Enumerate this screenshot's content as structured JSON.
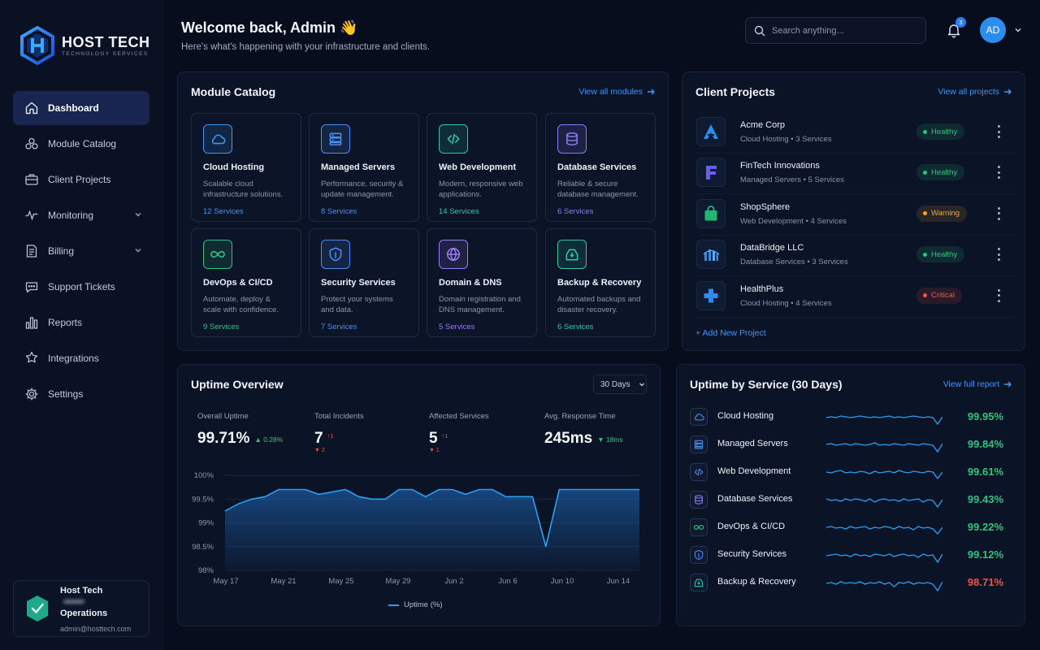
{
  "brand": {
    "name": "HOST TECH",
    "tagline": "TECHNOLOGY SERVICES"
  },
  "sidebar": {
    "items": [
      {
        "label": "Dashboard",
        "icon": "home-icon",
        "active": true
      },
      {
        "label": "Module Catalog",
        "icon": "cubes-icon"
      },
      {
        "label": "Client Projects",
        "icon": "briefcase-icon"
      },
      {
        "label": "Monitoring",
        "icon": "pulse-icon",
        "expandable": true
      },
      {
        "label": "Billing",
        "icon": "invoice-icon",
        "expandable": true
      },
      {
        "label": "Support Tickets",
        "icon": "chat-icon"
      },
      {
        "label": "Reports",
        "icon": "bar-chart-icon"
      },
      {
        "label": "Integrations",
        "icon": "puzzle-icon"
      },
      {
        "label": "Settings",
        "icon": "gear-icon"
      }
    ],
    "profile": {
      "name": "Host Tech Operations",
      "name_line1": "Host Tech",
      "name_line2": "Operations",
      "email": "admin@hosttech.com"
    }
  },
  "header": {
    "title": "Welcome back, Admin 👋",
    "subtitle": "Here's what's happening with your infrastructure and clients.",
    "search_placeholder": "Search anything...",
    "notifications_count": "3",
    "avatar_initials": "AD"
  },
  "module_catalog": {
    "title": "Module Catalog",
    "view_all": "View all modules",
    "modules": [
      {
        "title": "Cloud Hosting",
        "desc": "Scalable cloud infrastructure solutions.",
        "count": "12 Services",
        "icon": "cloud-icon",
        "color": "#3d97f6"
      },
      {
        "title": "Managed Servers",
        "desc": "Performance, security & update management.",
        "count": "8 Services",
        "icon": "server-icon",
        "color": "#4a8df6"
      },
      {
        "title": "Web Development",
        "desc": "Modern, responsive web applications.",
        "count": "14 Services",
        "icon": "code-icon",
        "color": "#2ec9a4"
      },
      {
        "title": "Database Services",
        "desc": "Reliable & secure database management.",
        "count": "6 Services",
        "icon": "database-icon",
        "color": "#8b7cf6"
      },
      {
        "title": "DevOps & CI/CD",
        "desc": "Automate, deploy & scale with confidence.",
        "count": "9 Services",
        "icon": "infinity-icon",
        "color": "#2fc47e"
      },
      {
        "title": "Security Services",
        "desc": "Protect your systems and data.",
        "count": "7 Services",
        "icon": "shield-icon",
        "color": "#4a8df6"
      },
      {
        "title": "Domain & DNS",
        "desc": "Domain registration and DNS management.",
        "count": "5 Services",
        "icon": "globe-icon",
        "color": "#9a7cf6"
      },
      {
        "title": "Backup & Recovery",
        "desc": "Automated backups and disaster recovery.",
        "count": "6 Services",
        "icon": "backup-icon",
        "color": "#2ec9a4"
      }
    ]
  },
  "client_projects": {
    "title": "Client Projects",
    "view_all": "View all projects",
    "add": "+ Add New Project",
    "projects": [
      {
        "name": "Acme Corp",
        "meta": "Cloud Hosting • 3 Services",
        "status": "Healthy",
        "status_color": "#2fc47e",
        "logo": "acme-logo-icon"
      },
      {
        "name": "FinTech Innovations",
        "meta": "Managed Servers • 5 Services",
        "status": "Healthy",
        "status_color": "#2fc47e",
        "logo": "fintech-logo-icon"
      },
      {
        "name": "ShopSphere",
        "meta": "Web Development • 4 Services",
        "status": "Warning",
        "status_color": "#f5a524",
        "logo": "shopping-bag-icon"
      },
      {
        "name": "DataBridge LLC",
        "meta": "Database Services • 3 Services",
        "status": "Healthy",
        "status_color": "#2fc47e",
        "logo": "bridge-icon"
      },
      {
        "name": "HealthPlus",
        "meta": "Cloud Hosting • 4 Services",
        "status": "Critical",
        "status_color": "#f0524a",
        "logo": "medical-cross-icon"
      }
    ]
  },
  "uptime_overview": {
    "title": "Uptime Overview",
    "range": "30 Days",
    "stats": [
      {
        "label": "Overall Uptime",
        "value": "99.71%",
        "delta": "0.28%",
        "delta_dir": "up"
      },
      {
        "label": "Total Incidents",
        "value": "7",
        "delta": "1",
        "delta_dir": "up-red",
        "sub": "2"
      },
      {
        "label": "Affected Services",
        "value": "5",
        "delta": "1",
        "delta_dir": "up-red",
        "sub": "1"
      },
      {
        "label": "Avg. Response Time",
        "value": "245ms",
        "delta": "18ms",
        "delta_dir": "down"
      }
    ],
    "legend": "Uptime (%)"
  },
  "chart_data": {
    "type": "area",
    "title": "Uptime Overview",
    "ylim": [
      98,
      100
    ],
    "yticks": [
      "100%",
      "99.5%",
      "99%",
      "98.5%",
      "98%"
    ],
    "ytick_values": [
      100,
      99.5,
      99,
      98.5,
      98
    ],
    "xticks": [
      "May 17",
      "May 21",
      "May 25",
      "May 29",
      "Jun 2",
      "Jun 6",
      "Jun 10",
      "Jun 14"
    ],
    "series": [
      {
        "name": "Uptime (%)",
        "x": [
          "May 16",
          "May 17",
          "May 18",
          "May 19",
          "May 20",
          "May 21",
          "May 22",
          "May 23",
          "May 24",
          "May 25",
          "May 26",
          "May 27",
          "May 28",
          "May 29",
          "May 30",
          "May 31",
          "Jun 1",
          "Jun 2",
          "Jun 3",
          "Jun 4",
          "Jun 5",
          "Jun 6",
          "Jun 7",
          "Jun 8",
          "Jun 9",
          "Jun 10",
          "Jun 11",
          "Jun 12",
          "Jun 13",
          "Jun 14",
          "Jun 15",
          "Jun 16"
        ],
        "values": [
          99.25,
          99.4,
          99.5,
          99.55,
          99.7,
          99.7,
          99.7,
          99.6,
          99.65,
          99.7,
          99.55,
          99.5,
          99.5,
          99.7,
          99.7,
          99.55,
          99.7,
          99.7,
          99.6,
          99.7,
          99.7,
          99.55,
          99.55,
          99.55,
          98.5,
          99.7,
          99.7,
          99.7,
          99.7,
          99.7,
          99.7,
          99.7
        ]
      }
    ],
    "grid": true,
    "legend_position": "bottom"
  },
  "uptime_by_service": {
    "title": "Uptime by Service (30 Days)",
    "view_all": "View full report",
    "services": [
      {
        "name": "Cloud Hosting",
        "value": "99.95%",
        "color": "#2fc47e",
        "icon": "cloud-icon",
        "icon_color": "#3d97f6"
      },
      {
        "name": "Managed Servers",
        "value": "99.84%",
        "color": "#2fc47e",
        "icon": "server-icon",
        "icon_color": "#4a8df6"
      },
      {
        "name": "Web Development",
        "value": "99.61%",
        "color": "#2fc47e",
        "icon": "code-icon",
        "icon_color": "#3d97f6"
      },
      {
        "name": "Database Services",
        "value": "99.43%",
        "color": "#2fc47e",
        "icon": "database-icon",
        "icon_color": "#8b7cf6"
      },
      {
        "name": "DevOps & CI/CD",
        "value": "99.22%",
        "color": "#2fc47e",
        "icon": "infinity-icon",
        "icon_color": "#2fc47e"
      },
      {
        "name": "Security Services",
        "value": "99.12%",
        "color": "#2fc47e",
        "icon": "shield-icon",
        "icon_color": "#4a8df6"
      },
      {
        "name": "Backup & Recovery",
        "value": "98.71%",
        "color": "#f0524a",
        "icon": "backup-icon",
        "icon_color": "#2ec9a4"
      }
    ]
  },
  "colors": {
    "accent": "#3d97f6",
    "healthy": "#2fc47e",
    "warning": "#f5a524",
    "critical": "#f0524a",
    "background": "#070d1d"
  }
}
